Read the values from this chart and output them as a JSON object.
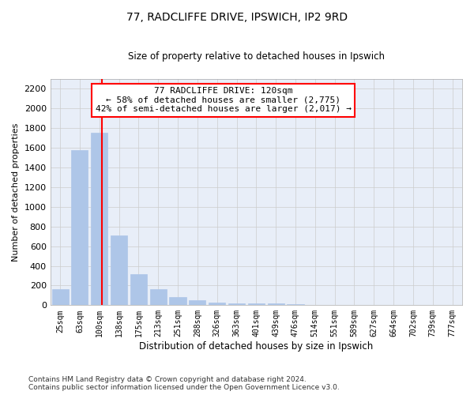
{
  "title1": "77, RADCLIFFE DRIVE, IPSWICH, IP2 9RD",
  "title2": "Size of property relative to detached houses in Ipswich",
  "xlabel": "Distribution of detached houses by size in Ipswich",
  "ylabel": "Number of detached properties",
  "bar_labels": [
    "25sqm",
    "63sqm",
    "100sqm",
    "138sqm",
    "175sqm",
    "213sqm",
    "251sqm",
    "288sqm",
    "326sqm",
    "363sqm",
    "401sqm",
    "439sqm",
    "476sqm",
    "514sqm",
    "551sqm",
    "589sqm",
    "627sqm",
    "664sqm",
    "702sqm",
    "739sqm",
    "777sqm"
  ],
  "bar_values": [
    160,
    1580,
    1750,
    710,
    315,
    160,
    85,
    50,
    30,
    20,
    20,
    15,
    10,
    0,
    0,
    0,
    0,
    0,
    0,
    0,
    0
  ],
  "bar_color": "#aec6e8",
  "bar_edgecolor": "#aec6e8",
  "grid_color": "#cccccc",
  "background_color": "#e8eef8",
  "vline_x": 2.15,
  "vline_color": "red",
  "annotation_text": "77 RADCLIFFE DRIVE: 120sqm\n← 58% of detached houses are smaller (2,775)\n42% of semi-detached houses are larger (2,017) →",
  "annotation_box_color": "white",
  "annotation_box_edgecolor": "red",
  "footnote": "Contains HM Land Registry data © Crown copyright and database right 2024.\nContains public sector information licensed under the Open Government Licence v3.0.",
  "ylim": [
    0,
    2300
  ],
  "yticks": [
    0,
    200,
    400,
    600,
    800,
    1000,
    1200,
    1400,
    1600,
    1800,
    2000,
    2200
  ]
}
